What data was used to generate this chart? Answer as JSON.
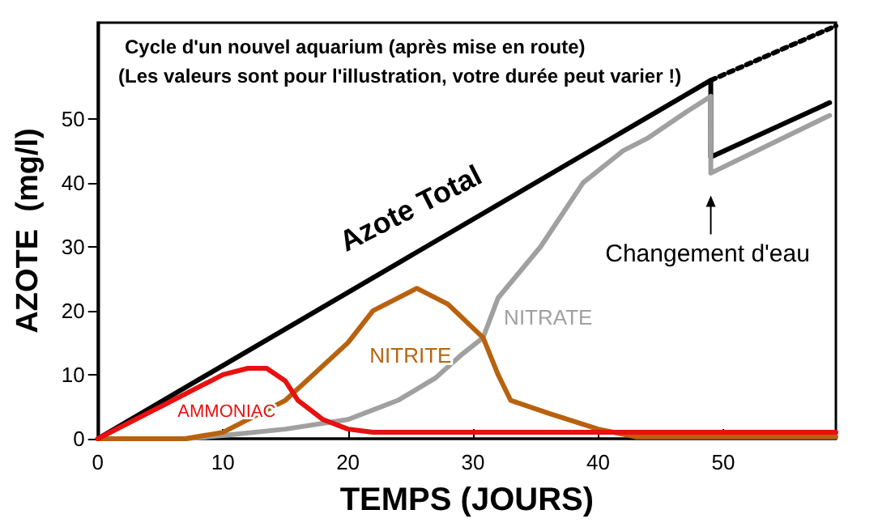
{
  "chart_data": {
    "type": "line",
    "title": "Cycle d'un nouvel aquarium (après mise en route)",
    "subtitle": "(Les valeurs sont pour l'illustration, votre durée peut varier !)",
    "xlabel": "TEMPS (JOURS)",
    "ylabel": "AZOTE  (mg/l)",
    "xlim": [
      0,
      59
    ],
    "ylim": [
      0,
      65
    ],
    "xticks": [
      0,
      10,
      20,
      30,
      40,
      50
    ],
    "yticks": [
      0,
      10,
      20,
      30,
      40,
      50
    ],
    "grid": false,
    "legend": false,
    "marker": "none",
    "line_style": "solid",
    "annotations": [
      "Changement d'eau"
    ],
    "series": [
      {
        "name": "Azote Total",
        "color": "#000000",
        "x": [
          0,
          49,
          49,
          58.5
        ],
        "values": [
          0,
          56,
          44,
          52.5
        ]
      },
      {
        "color": "#000000",
        "line_style": "dotted",
        "x": [
          49,
          59
        ],
        "values": [
          56,
          64.5
        ]
      },
      {
        "name": "NITRATE",
        "color": "#a0a0a0",
        "x": [
          0,
          7,
          10,
          15,
          20,
          24,
          27,
          29,
          30.8,
          32,
          35.4,
          38.8,
          42,
          44,
          47,
          49,
          49,
          58.5
        ],
        "values": [
          0,
          0,
          0.5,
          1.5,
          3,
          6,
          9.5,
          13,
          15.8,
          22,
          30,
          40,
          45,
          47,
          51,
          53.5,
          41.5,
          50.5
        ]
      },
      {
        "name": "NITRITE",
        "color": "#b8620f",
        "x": [
          0,
          7,
          10,
          15,
          20,
          22,
          25.5,
          28,
          30.8,
          32,
          33,
          36,
          40,
          43,
          59
        ],
        "values": [
          0,
          0,
          1,
          6,
          15,
          20,
          23.5,
          21,
          15.8,
          10,
          6,
          4,
          1.5,
          0.3,
          0.3
        ]
      },
      {
        "name": "AMMONIAC",
        "color": "#e81010",
        "x": [
          0,
          5,
          10,
          12,
          13.5,
          15,
          16,
          18,
          20,
          22,
          59
        ],
        "values": [
          0,
          5,
          10,
          11,
          11,
          9,
          6,
          3,
          1.5,
          1,
          1
        ]
      }
    ]
  }
}
